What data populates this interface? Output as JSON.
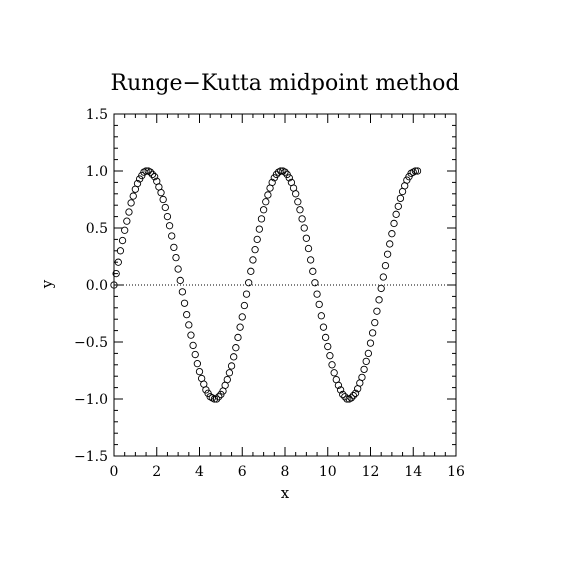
{
  "chart_data": {
    "type": "scatter",
    "title": "Runge−Kutta midpoint method",
    "xlabel": "x",
    "ylabel": "y",
    "xlim": [
      0,
      16
    ],
    "ylim": [
      -1.5,
      1.5
    ],
    "xticks": [
      0,
      2,
      4,
      6,
      8,
      10,
      12,
      14,
      16
    ],
    "yticks": [
      -1.5,
      -1.0,
      -0.5,
      0.0,
      0.5,
      1.0,
      1.5
    ],
    "xtick_labels": [
      "0",
      "2",
      "4",
      "6",
      "8",
      "10",
      "12",
      "14",
      "16"
    ],
    "ytick_labels": [
      "−1.5",
      "−1.0",
      "−0.5",
      "0.0",
      "0.5",
      "1.0",
      "1.5"
    ],
    "reference_line": {
      "y": 0,
      "style": "dotted"
    },
    "marker": "open-circle",
    "series": [
      {
        "x": [
          0.0,
          0.1,
          0.2,
          0.3,
          0.4,
          0.5,
          0.6,
          0.7,
          0.8,
          0.9,
          1.0,
          1.1,
          1.2,
          1.3,
          1.4,
          1.5,
          1.6,
          1.7,
          1.8,
          1.9,
          2.0,
          2.1,
          2.2,
          2.3,
          2.4,
          2.5,
          2.6,
          2.7,
          2.8,
          2.9,
          3.0,
          3.1,
          3.2,
          3.3,
          3.4,
          3.5,
          3.6,
          3.7,
          3.8,
          3.9,
          4.0,
          4.1,
          4.2,
          4.3,
          4.4,
          4.5,
          4.6,
          4.7,
          4.8,
          4.9,
          5.0,
          5.1,
          5.2,
          5.3,
          5.4,
          5.5,
          5.6,
          5.7,
          5.8,
          5.9,
          6.0,
          6.1,
          6.2,
          6.3,
          6.4,
          6.5,
          6.6,
          6.7,
          6.8,
          6.9,
          7.0,
          7.1,
          7.2,
          7.3,
          7.4,
          7.5,
          7.6,
          7.7,
          7.8,
          7.9,
          8.0,
          8.1,
          8.2,
          8.3,
          8.4,
          8.5,
          8.6,
          8.7,
          8.8,
          8.9,
          9.0,
          9.1,
          9.2,
          9.3,
          9.4,
          9.5,
          9.6,
          9.7,
          9.8,
          9.9,
          10.0,
          10.1,
          10.2,
          10.3,
          10.4,
          10.5,
          10.6,
          10.7,
          10.8,
          10.9,
          11.0,
          11.1,
          11.2,
          11.3,
          11.4,
          11.5,
          11.6,
          11.7,
          11.8,
          11.9,
          12.0,
          12.1,
          12.2,
          12.3,
          12.4,
          12.5,
          12.6,
          12.7,
          12.8,
          12.9,
          13.0,
          13.1,
          13.2,
          13.3,
          13.4,
          13.5,
          13.6,
          13.7,
          13.8,
          13.9,
          14.0,
          14.1,
          14.2
        ],
        "y": [
          0.0,
          0.1,
          0.2,
          0.3,
          0.39,
          0.48,
          0.56,
          0.64,
          0.72,
          0.78,
          0.84,
          0.89,
          0.93,
          0.96,
          0.99,
          1.0,
          1.0,
          0.99,
          0.97,
          0.95,
          0.91,
          0.86,
          0.81,
          0.75,
          0.68,
          0.6,
          0.52,
          0.43,
          0.33,
          0.24,
          0.14,
          0.04,
          -0.06,
          -0.16,
          -0.26,
          -0.35,
          -0.44,
          -0.53,
          -0.61,
          -0.69,
          -0.76,
          -0.82,
          -0.87,
          -0.92,
          -0.95,
          -0.98,
          -0.99,
          -1.0,
          -1.0,
          -0.98,
          -0.96,
          -0.93,
          -0.88,
          -0.83,
          -0.77,
          -0.71,
          -0.63,
          -0.55,
          -0.46,
          -0.37,
          -0.28,
          -0.18,
          -0.08,
          0.02,
          0.12,
          0.22,
          0.31,
          0.4,
          0.49,
          0.58,
          0.66,
          0.73,
          0.79,
          0.85,
          0.9,
          0.94,
          0.97,
          0.99,
          1.0,
          1.0,
          0.99,
          0.97,
          0.94,
          0.9,
          0.85,
          0.8,
          0.73,
          0.66,
          0.58,
          0.5,
          0.41,
          0.32,
          0.22,
          0.12,
          0.02,
          -0.08,
          -0.17,
          -0.27,
          -0.37,
          -0.46,
          -0.54,
          -0.62,
          -0.7,
          -0.77,
          -0.83,
          -0.88,
          -0.92,
          -0.96,
          -0.98,
          -1.0,
          -1.0,
          -0.99,
          -0.97,
          -0.95,
          -0.91,
          -0.86,
          -0.81,
          -0.74,
          -0.67,
          -0.6,
          -0.51,
          -0.42,
          -0.33,
          -0.23,
          -0.13,
          -0.03,
          0.07,
          0.17,
          0.27,
          0.36,
          0.45,
          0.54,
          0.62,
          0.69,
          0.76,
          0.82,
          0.87,
          0.92,
          0.95,
          0.98,
          0.99,
          1.0,
          1.0
        ]
      }
    ]
  }
}
